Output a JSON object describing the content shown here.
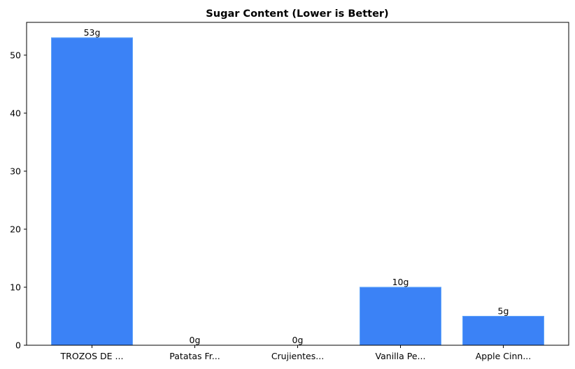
{
  "chart_data": {
    "type": "bar",
    "title": "Sugar Content (Lower is Better)",
    "xlabel": "",
    "ylabel": "",
    "categories": [
      "TROZOS DE ...",
      "Patatas Fr...",
      "Crujientes...",
      "Vanilla Pe...",
      "Apple Cinn..."
    ],
    "values": [
      53,
      0,
      0,
      10,
      5
    ],
    "data_labels": [
      "53g",
      "0g",
      "0g",
      "10g",
      "5g"
    ],
    "ylim": [
      0,
      55.65
    ],
    "yticks": [
      0,
      10,
      20,
      30,
      40,
      50
    ],
    "bar_color": "#3b82f6",
    "bar_edge_color": "#60a5fa",
    "grid": false,
    "legend": "none"
  }
}
